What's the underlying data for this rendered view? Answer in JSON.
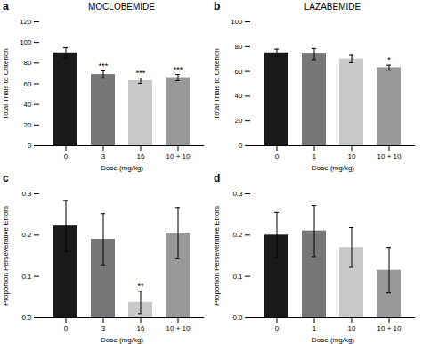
{
  "chart_data": [
    {
      "type": "bar",
      "panel_label": "a",
      "title": "MOCLOBEMIDE",
      "categories": [
        "0",
        "3",
        "16",
        "10 + 10"
      ],
      "values": [
        90,
        69,
        63,
        66
      ],
      "errors": [
        5,
        3.5,
        2.5,
        3
      ],
      "colors": [
        "#1a1a1a",
        "#777777",
        "#c8c8c8",
        "#999999"
      ],
      "significance": [
        null,
        "***",
        "***",
        "***"
      ],
      "ylim": [
        0,
        120
      ],
      "yticks": [
        0,
        20,
        40,
        60,
        80,
        100,
        120
      ],
      "xlabel": "Dose (mg/kg)",
      "ylabel": "Total Trials to Criterion",
      "grid": false
    },
    {
      "type": "bar",
      "panel_label": "b",
      "title": "LAZABEMIDE",
      "categories": [
        "0",
        "1",
        "10",
        "10 + 10"
      ],
      "values": [
        75,
        74,
        70,
        63
      ],
      "errors": [
        3,
        4.5,
        3,
        2
      ],
      "colors": [
        "#1a1a1a",
        "#777777",
        "#c8c8c8",
        "#999999"
      ],
      "significance": [
        null,
        null,
        null,
        "*"
      ],
      "ylim": [
        0,
        100
      ],
      "yticks": [
        0,
        20,
        40,
        60,
        80,
        100
      ],
      "xlabel": "Dose (mg/kg)",
      "ylabel": "Total Trials to Criterion",
      "grid": false
    },
    {
      "type": "bar",
      "panel_label": "c",
      "categories": [
        "0",
        "3",
        "16",
        "10 + 10"
      ],
      "values": [
        0.222,
        0.19,
        0.037,
        0.205
      ],
      "errors": [
        0.062,
        0.062,
        0.027,
        0.062
      ],
      "colors": [
        "#1a1a1a",
        "#777777",
        "#c8c8c8",
        "#999999"
      ],
      "significance": [
        null,
        null,
        "**",
        null
      ],
      "ylim": [
        0,
        0.3
      ],
      "yticks": [
        {
          "value": 0,
          "label": "0.0"
        },
        0.1,
        0.2,
        0.3
      ],
      "xlabel": "Dose (mg/kg)",
      "ylabel": "Proportion Perseverative Errors",
      "grid": false
    },
    {
      "type": "bar",
      "panel_label": "d",
      "categories": [
        "0",
        "1",
        "10",
        "10 + 10"
      ],
      "values": [
        0.2,
        0.21,
        0.17,
        0.115
      ],
      "errors": [
        0.055,
        0.062,
        0.048,
        0.055
      ],
      "colors": [
        "#1a1a1a",
        "#777777",
        "#c8c8c8",
        "#999999"
      ],
      "significance": [
        null,
        null,
        null,
        null
      ],
      "ylim": [
        0,
        0.3
      ],
      "yticks": [
        {
          "value": 0,
          "label": "0.0"
        },
        0.1,
        0.2,
        0.3
      ],
      "xlabel": "Dose (mg/kg)",
      "ylabel": "Proportion Perseverative Errors",
      "grid": false
    }
  ]
}
